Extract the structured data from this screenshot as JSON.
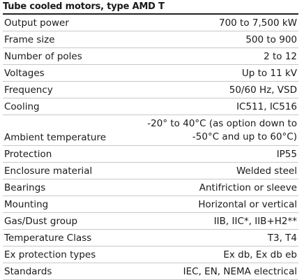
{
  "header": {
    "title": "Tube cooled motors, type AMD T"
  },
  "table": {
    "rows": [
      [
        "Output power",
        "700 to 7,500 kW"
      ],
      [
        "Frame size",
        "500 to 900"
      ],
      [
        "Number of poles",
        "2 to 12"
      ],
      [
        "Voltages",
        "Up to 11 kV"
      ],
      [
        "Frequency",
        "50/60 Hz, VSD"
      ],
      [
        "Cooling",
        "IC511, IC516"
      ],
      [
        "Ambient temperature",
        "-20° to 40°C (as option down to -50°C and up to 60°C)"
      ],
      [
        "Protection",
        "IP55"
      ],
      [
        "Enclosure material",
        "Welded steel"
      ],
      [
        "Bearings",
        "Antifriction or sleeve"
      ],
      [
        "Mounting",
        "Horizontal or vertical"
      ],
      [
        "Gas/Dust group",
        "IIB, IIC*, IIB+H2**"
      ],
      [
        "Temperature Class",
        "T3, T4"
      ],
      [
        "Ex protection types",
        "Ex db, Ex db eb"
      ],
      [
        "Standards",
        "IEC, EN, NEMA electrical"
      ]
    ]
  }
}
